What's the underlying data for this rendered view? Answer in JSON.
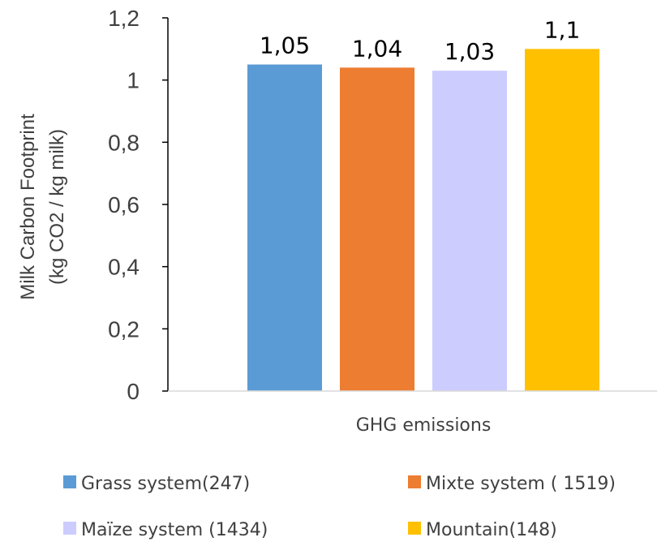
{
  "chart_data": {
    "type": "bar",
    "categories": [
      "GHG emissions"
    ],
    "ylabel": [
      "Milk Carbon Footprint",
      "(kg CO2 / kg milk)"
    ],
    "ylim": [
      0,
      1.2
    ],
    "yticks": [
      "0",
      "0,2",
      "0,4",
      "0,6",
      "0,8",
      "1",
      "1,2"
    ],
    "grid": false,
    "legend_position": "bottom",
    "series": [
      {
        "name": "Grass system(247)",
        "value": 1.05,
        "label": "1,05",
        "color": "#5b9bd5"
      },
      {
        "name": "Mixte system ( 1519)",
        "value": 1.04,
        "label": "1,04",
        "color": "#ed7d31"
      },
      {
        "name": "Maïze system (1434)",
        "value": 1.03,
        "label": "1,03",
        "color": "#ccccff"
      },
      {
        "name": "Mountain(148)",
        "value": 1.1,
        "label": "1,1",
        "color": "#ffc000"
      }
    ]
  }
}
